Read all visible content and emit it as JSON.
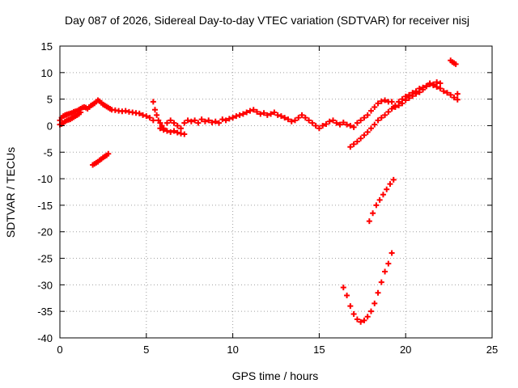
{
  "chart_data": {
    "type": "scatter",
    "title": "Day 087 of 2026, Sidereal Day-to-day VTEC variation (SDTVAR) for receiver nisj",
    "xlabel": "GPS time / hours",
    "ylabel": "SDTVAR / TECUs",
    "xlim": [
      0,
      25
    ],
    "ylim": [
      -40,
      15
    ],
    "xticks": [
      0,
      5,
      10,
      15,
      20,
      25
    ],
    "yticks": [
      15,
      10,
      5,
      0,
      -5,
      -10,
      -15,
      -20,
      -25,
      -30,
      -35,
      -40
    ],
    "grid": true,
    "legend": "none",
    "marker": "plus",
    "color": "#ff0000",
    "series": [
      {
        "x": [
          0.0,
          0.1,
          0.2,
          0.3,
          0.4,
          0.5,
          0.6,
          0.7,
          0.8,
          0.9,
          1.0,
          1.1,
          1.2,
          1.3,
          1.4,
          1.5,
          1.6,
          1.7,
          1.8,
          1.9,
          2.0,
          2.1,
          2.2,
          2.3,
          2.4,
          2.5,
          2.6,
          2.7,
          2.8,
          2.9,
          3.0,
          3.2,
          3.4,
          3.6,
          3.8,
          4.0,
          4.2,
          4.4,
          4.6,
          4.8,
          5.0,
          5.2,
          5.4
        ],
        "y": [
          1.0,
          1.5,
          1.8,
          2.0,
          2.1,
          2.2,
          2.3,
          2.4,
          2.6,
          2.7,
          2.8,
          3.0,
          3.2,
          3.4,
          3.5,
          3.4,
          3.2,
          3.5,
          3.8,
          4.0,
          4.2,
          4.5,
          4.8,
          4.6,
          4.3,
          4.0,
          3.8,
          3.6,
          3.4,
          3.2,
          3.0,
          2.9,
          2.8,
          2.7,
          2.8,
          2.6,
          2.5,
          2.4,
          2.3,
          2.0,
          1.8,
          1.5,
          1.0
        ]
      },
      {
        "x": [
          0.0,
          0.1,
          0.2,
          0.3,
          0.4,
          0.5,
          0.6,
          0.7,
          0.8,
          0.9,
          1.0,
          1.1,
          1.2
        ],
        "y": [
          0.2,
          0.3,
          0.5,
          0.8,
          1.0,
          1.1,
          1.2,
          1.4,
          1.6,
          1.8,
          2.0,
          2.2,
          2.5
        ]
      },
      {
        "x": [
          1.9,
          2.0,
          2.1,
          2.2,
          2.3,
          2.4,
          2.5,
          2.6,
          2.7,
          2.8
        ],
        "y": [
          -7.4,
          -7.2,
          -7.0,
          -6.8,
          -6.5,
          -6.3,
          -6.0,
          -5.8,
          -5.6,
          -5.3
        ]
      },
      {
        "x": [
          5.4,
          5.5,
          5.6,
          5.7,
          5.8,
          5.9,
          6.0,
          6.2,
          6.4,
          6.6,
          6.8,
          7.0,
          7.2,
          7.4,
          7.6,
          7.8,
          8.0,
          8.2,
          8.4,
          8.6,
          8.8,
          9.0,
          9.2,
          9.4,
          9.6,
          9.8,
          10.0,
          10.2,
          10.4,
          10.6,
          10.8,
          11.0,
          11.2,
          11.4,
          11.6,
          11.8,
          12.0,
          12.2,
          12.4,
          12.6,
          12.8,
          13.0,
          13.2,
          13.4,
          13.6,
          13.8,
          14.0,
          14.2,
          14.4,
          14.6,
          14.8,
          15.0,
          15.2,
          15.4,
          15.6,
          15.8,
          16.0,
          16.2,
          16.4,
          16.6,
          16.8,
          17.0,
          17.2,
          17.4,
          17.6,
          17.8,
          18.0,
          18.2,
          18.4,
          18.6,
          18.8,
          19.0
        ],
        "y": [
          4.5,
          3.0,
          2.0,
          1.0,
          0.5,
          0.0,
          -0.5,
          0.5,
          1.0,
          0.5,
          0.0,
          -0.5,
          0.5,
          1.0,
          0.8,
          1.0,
          0.5,
          1.2,
          0.8,
          1.0,
          0.6,
          0.8,
          0.5,
          1.2,
          1.0,
          1.3,
          1.5,
          1.8,
          2.0,
          2.2,
          2.5,
          2.8,
          3.0,
          2.6,
          2.2,
          2.4,
          2.0,
          2.2,
          2.5,
          2.0,
          1.8,
          1.5,
          1.2,
          0.8,
          1.0,
          1.5,
          2.0,
          1.5,
          1.0,
          0.5,
          0.0,
          -0.5,
          0.0,
          0.3,
          0.8,
          1.0,
          0.5,
          0.2,
          0.6,
          0.2,
          0.0,
          -0.3,
          0.5,
          1.0,
          1.5,
          2.0,
          2.8,
          3.5,
          4.2,
          4.6,
          4.8,
          4.5
        ]
      },
      {
        "x": [
          5.8,
          6.0,
          6.2,
          6.4,
          6.6,
          6.8,
          7.0,
          7.2
        ],
        "y": [
          -0.5,
          -0.8,
          -1.0,
          -1.2,
          -1.0,
          -1.3,
          -1.5,
          -1.6
        ]
      },
      {
        "x": [
          16.8,
          17.0,
          17.2,
          17.4,
          17.6,
          17.8,
          18.0,
          18.2,
          18.4,
          18.6,
          18.8,
          19.0,
          19.2
        ],
        "y": [
          -4.0,
          -3.5,
          -3.0,
          -2.4,
          -1.8,
          -1.2,
          -0.5,
          0.2,
          1.0,
          1.5,
          2.0,
          2.6,
          3.2
        ]
      },
      {
        "x": [
          17.9,
          18.1,
          18.3,
          18.5,
          18.7,
          18.9,
          19.1,
          19.3
        ],
        "y": [
          -18.0,
          -16.5,
          -15.0,
          -14.0,
          -13.0,
          -12.0,
          -11.0,
          -10.2
        ]
      },
      {
        "x": [
          16.4,
          16.6,
          16.8,
          17.0,
          17.2,
          17.4,
          17.6,
          17.8,
          18.0,
          18.2,
          18.4,
          18.6,
          18.8,
          19.0,
          19.2
        ],
        "y": [
          -30.5,
          -32.0,
          -34.0,
          -35.5,
          -36.5,
          -37.0,
          -36.7,
          -36.0,
          -35.0,
          -33.5,
          -31.5,
          -29.5,
          -27.5,
          -26.0,
          -24.0
        ]
      },
      {
        "x": [
          19.2,
          19.4,
          19.6,
          19.8,
          20.0,
          20.2,
          20.4,
          20.6,
          20.8,
          21.0,
          21.2,
          21.4,
          21.6,
          21.8,
          22.0,
          22.2,
          22.4,
          22.6,
          22.8,
          23.0
        ],
        "y": [
          4.5,
          3.8,
          4.5,
          5.0,
          5.5,
          5.8,
          6.2,
          6.5,
          7.0,
          7.2,
          7.5,
          7.8,
          7.6,
          7.3,
          7.0,
          6.5,
          6.2,
          5.8,
          5.3,
          4.9
        ]
      },
      {
        "x": [
          19.4,
          19.6,
          19.8,
          20.0,
          20.2,
          20.4,
          20.6,
          20.8,
          21.0,
          21.2,
          21.4,
          21.6,
          21.8,
          22.0
        ],
        "y": [
          3.5,
          3.8,
          4.2,
          4.8,
          5.2,
          5.6,
          6.0,
          6.3,
          6.8,
          7.4,
          8.0,
          7.8,
          8.2,
          8.0
        ]
      },
      {
        "x": [
          22.6,
          22.7,
          22.8,
          22.9
        ],
        "y": [
          12.3,
          12.0,
          11.8,
          11.6
        ]
      },
      {
        "x": [
          23.0
        ],
        "y": [
          6.0
        ]
      }
    ]
  }
}
